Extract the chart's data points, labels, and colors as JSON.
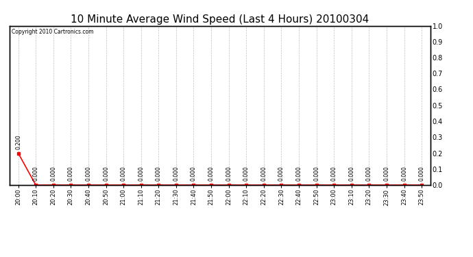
{
  "title": "10 Minute Average Wind Speed (Last 4 Hours) 20100304",
  "copyright_text": "Copyright 2010 Cartronics.com",
  "line_color": "#ff0000",
  "background_color": "#ffffff",
  "grid_color": "#c0c0c0",
  "x_labels": [
    "20:00",
    "20:10",
    "20:20",
    "20:30",
    "20:40",
    "20:50",
    "21:00",
    "21:10",
    "21:20",
    "21:30",
    "21:40",
    "21:50",
    "22:00",
    "22:10",
    "22:20",
    "22:30",
    "22:40",
    "22:50",
    "23:00",
    "23:10",
    "23:20",
    "23:30",
    "23:40",
    "23:50"
  ],
  "y_values": [
    0.2,
    0.0,
    0.0,
    0.0,
    0.0,
    0.0,
    0.0,
    0.0,
    0.0,
    0.0,
    0.0,
    0.0,
    0.0,
    0.0,
    0.0,
    0.0,
    0.0,
    0.0,
    0.0,
    0.0,
    0.0,
    0.0,
    0.0,
    0.0
  ],
  "point_labels": [
    "0.200",
    "0.000",
    "0.000",
    "0.000",
    "0.000",
    "0.000",
    "0.000",
    "0.000",
    "0.000",
    "0.000",
    "0.000",
    "0.000",
    "0.000",
    "0.000",
    "0.000",
    "0.000",
    "0.000",
    "0.000",
    "0.000",
    "0.000",
    "0.000",
    "0.000",
    "0.000",
    "0.000"
  ],
  "ylim": [
    0.0,
    1.0
  ],
  "yticks_right": [
    0.0,
    0.1,
    0.2,
    0.3,
    0.4,
    0.5,
    0.6,
    0.7,
    0.8,
    0.9,
    1.0
  ],
  "title_fontsize": 11,
  "marker": "s",
  "marker_size": 2.5,
  "line_width": 1.2
}
